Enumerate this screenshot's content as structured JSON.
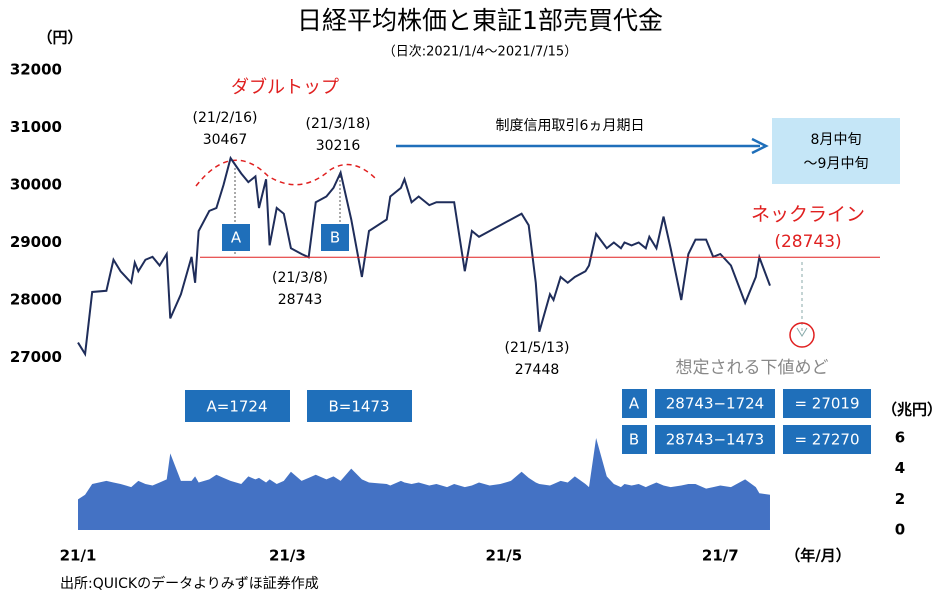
{
  "chart_data": {
    "type": "line",
    "title": "日経平均株価と東証1部売買代金",
    "subtitle": "（日次:2021/1/4〜2021/7/15）",
    "y_label": "（円）",
    "y2_label": "（兆円）",
    "x_label": "（年/月）",
    "source": "出所:QUICKのデータよりみずほ証券作成",
    "xlim": [
      0,
      226
    ],
    "xticks": [
      {
        "value": 0,
        "label": "21/1"
      },
      {
        "value": 59,
        "label": "21/3"
      },
      {
        "value": 120,
        "label": "21/5"
      },
      {
        "value": 181,
        "label": "21/7"
      }
    ],
    "ylim": [
      24000,
      32000
    ],
    "yticks": [
      27000,
      28000,
      29000,
      30000,
      31000,
      32000
    ],
    "y2lim": [
      0,
      30
    ],
    "y2ticks": [
      0,
      2,
      4,
      6
    ],
    "x": [
      0,
      2,
      4,
      8,
      10,
      12,
      15,
      16,
      17,
      19,
      21,
      23,
      25,
      26,
      29,
      32,
      33,
      34,
      37,
      39,
      41,
      43,
      46,
      48,
      50,
      51,
      53,
      54,
      56,
      58,
      60,
      63,
      65,
      67,
      70,
      72,
      74,
      77,
      80,
      82,
      87,
      88,
      91,
      92,
      94,
      96,
      99,
      101,
      104,
      106,
      109,
      111,
      113,
      116,
      119,
      122,
      125,
      127,
      129,
      130,
      133,
      134,
      136,
      138,
      140,
      143,
      144,
      146,
      149,
      151,
      153,
      154,
      156,
      158,
      160,
      161,
      163,
      165,
      167,
      170,
      172,
      174,
      177,
      179,
      181,
      184,
      188,
      191,
      192,
      195
    ],
    "series": [
      {
        "name": "日経平均株価",
        "color": "#1f2d5a",
        "type": "line",
        "values": [
          27260,
          27060,
          28140,
          28160,
          28700,
          28500,
          28300,
          28650,
          28500,
          28700,
          28750,
          28600,
          28800,
          27680,
          28100,
          28750,
          28300,
          29200,
          29550,
          29600,
          30000,
          30467,
          30200,
          30050,
          30150,
          29600,
          30100,
          28950,
          29600,
          29500,
          28900,
          28800,
          28743,
          29700,
          29800,
          29950,
          30216,
          29400,
          28400,
          29200,
          29400,
          29800,
          29950,
          30100,
          29700,
          29800,
          29650,
          29700,
          29700,
          29700,
          28500,
          29200,
          29100,
          29200,
          29300,
          29400,
          29500,
          29300,
          28300,
          27448,
          28100,
          28000,
          28400,
          28300,
          28400,
          28500,
          28600,
          29150,
          28900,
          29000,
          28900,
          29000,
          28950,
          29000,
          28900,
          29100,
          28900,
          29450,
          28900,
          28000,
          28800,
          29050,
          29050,
          28750,
          28800,
          28600,
          27950,
          28400,
          28743,
          28250
        ]
      },
      {
        "name": "東証1部売買代金",
        "color": "#4472c4",
        "type": "area",
        "axis": "y2",
        "values": [
          2,
          2.3,
          3,
          3.2,
          3.1,
          3,
          2.8,
          3,
          3.2,
          3,
          2.9,
          3.1,
          3.3,
          5,
          3.2,
          3.2,
          3.5,
          3.1,
          3.3,
          3.6,
          3.4,
          3.2,
          3,
          3.5,
          3.3,
          3.4,
          3.1,
          3.3,
          3,
          3.2,
          3.8,
          3.2,
          3.4,
          3.6,
          3.3,
          3.5,
          3.2,
          4,
          3.3,
          3.1,
          3,
          2.9,
          3.2,
          3.1,
          3,
          3.1,
          2.9,
          3,
          2.8,
          3,
          2.8,
          2.9,
          3.1,
          2.9,
          3,
          3.2,
          3.8,
          3.4,
          3.1,
          3,
          2.9,
          3,
          3.2,
          3.1,
          3.5,
          3,
          2.8,
          6,
          3.5,
          3,
          2.8,
          3,
          2.9,
          3,
          2.8,
          2.9,
          3.1,
          2.9,
          2.8,
          2.9,
          3,
          3,
          2.7,
          2.8,
          2.9,
          2.8,
          3.3,
          2.8,
          2.4,
          2.3
        ]
      }
    ],
    "neckline": {
      "label": "ネックライン",
      "value_label": "(28743)",
      "value": 28743,
      "color": "#e02020"
    },
    "annotations": {
      "double_top": "ダブルトップ",
      "peak_a": {
        "date": "(21/2/16)",
        "value": "30467"
      },
      "peak_b": {
        "date": "(21/3/18)",
        "value": "30216"
      },
      "trough_mid": {
        "date": "(21/3/8)",
        "value": "28743"
      },
      "trough_may": {
        "date": "(21/5/13)",
        "value": "27448"
      },
      "marker_a": "A",
      "marker_b": "B",
      "margin_a": "A=1724",
      "margin_b": "B=1473",
      "arrow_note": "制度信用取引6ヵ月期日",
      "period": [
        "8月中旬",
        "〜9月中旬"
      ],
      "targets_title": "想定される下値めど",
      "targets": [
        [
          "A",
          "28743−1724",
          "= 27019"
        ],
        [
          "B",
          "28743−1473",
          "= 27270"
        ]
      ]
    }
  }
}
